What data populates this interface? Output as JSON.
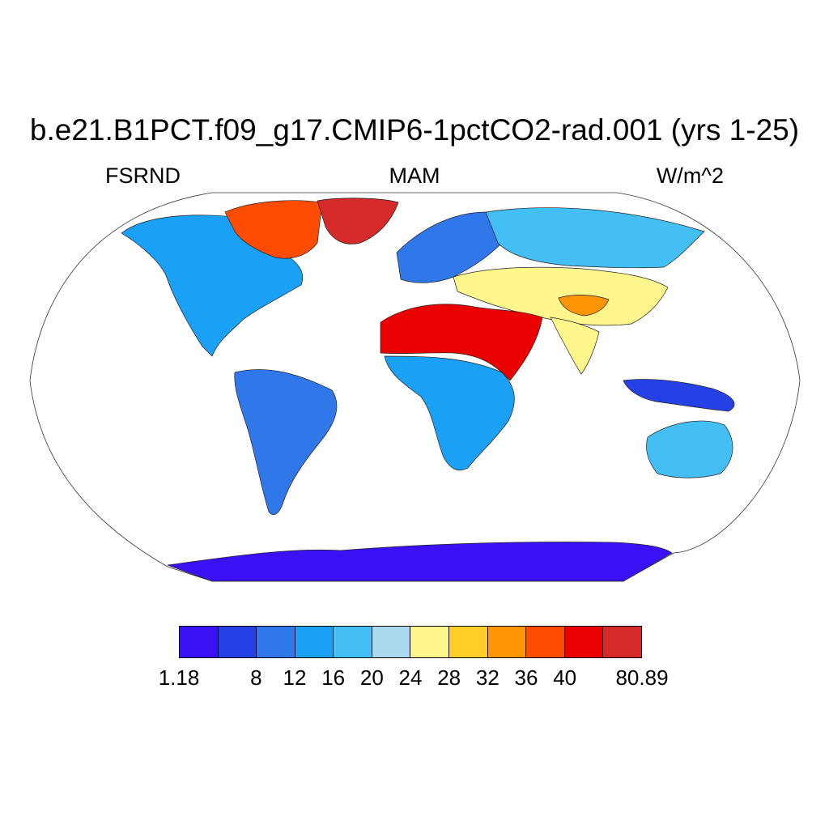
{
  "figure": {
    "title": "b.e21.B1PCT.f09_g17.CMIP6-1pctCO2-rad.001 (yrs 1-25)",
    "left_label": "FSRND",
    "center_label": "MAM",
    "right_label": "W/m^2"
  },
  "map": {
    "projection": "robinson",
    "field": "FSRND",
    "season": "MAM",
    "units": "W/m^2",
    "ocean_masked": true,
    "ocean_color": "#ffffff",
    "regions": [
      {
        "name": "north-america",
        "level": 3
      },
      {
        "name": "canada-arctic",
        "level": 9
      },
      {
        "name": "greenland",
        "level": 11
      },
      {
        "name": "south-america",
        "level": 2
      },
      {
        "name": "europe",
        "level": 2
      },
      {
        "name": "siberia",
        "level": 4
      },
      {
        "name": "central-asia",
        "level": 6
      },
      {
        "name": "tibet",
        "level": 8
      },
      {
        "name": "sahara-arabia",
        "level": 10
      },
      {
        "name": "africa-south",
        "level": 3
      },
      {
        "name": "india",
        "level": 6
      },
      {
        "name": "maritime-asia",
        "level": 1
      },
      {
        "name": "australia",
        "level": 4
      },
      {
        "name": "antarctica",
        "level": 0
      }
    ]
  },
  "colorbar": {
    "colors": [
      "#3c10f5",
      "#2541e6",
      "#3078ea",
      "#1aa0f5",
      "#43bff5",
      "#aad8ee",
      "#fff68c",
      "#ffcf28",
      "#ff9405",
      "#ff4c00",
      "#eb0000",
      "#d42a2a"
    ],
    "labels": [
      {
        "text": "1.18",
        "edge": 0
      },
      {
        "text": "8",
        "edge": 2
      },
      {
        "text": "12",
        "edge": 3
      },
      {
        "text": "16",
        "edge": 4
      },
      {
        "text": "20",
        "edge": 5
      },
      {
        "text": "24",
        "edge": 6
      },
      {
        "text": "28",
        "edge": 7
      },
      {
        "text": "32",
        "edge": 8
      },
      {
        "text": "36",
        "edge": 9
      },
      {
        "text": "40",
        "edge": 10
      },
      {
        "text": "80.89",
        "edge": 12
      }
    ]
  }
}
